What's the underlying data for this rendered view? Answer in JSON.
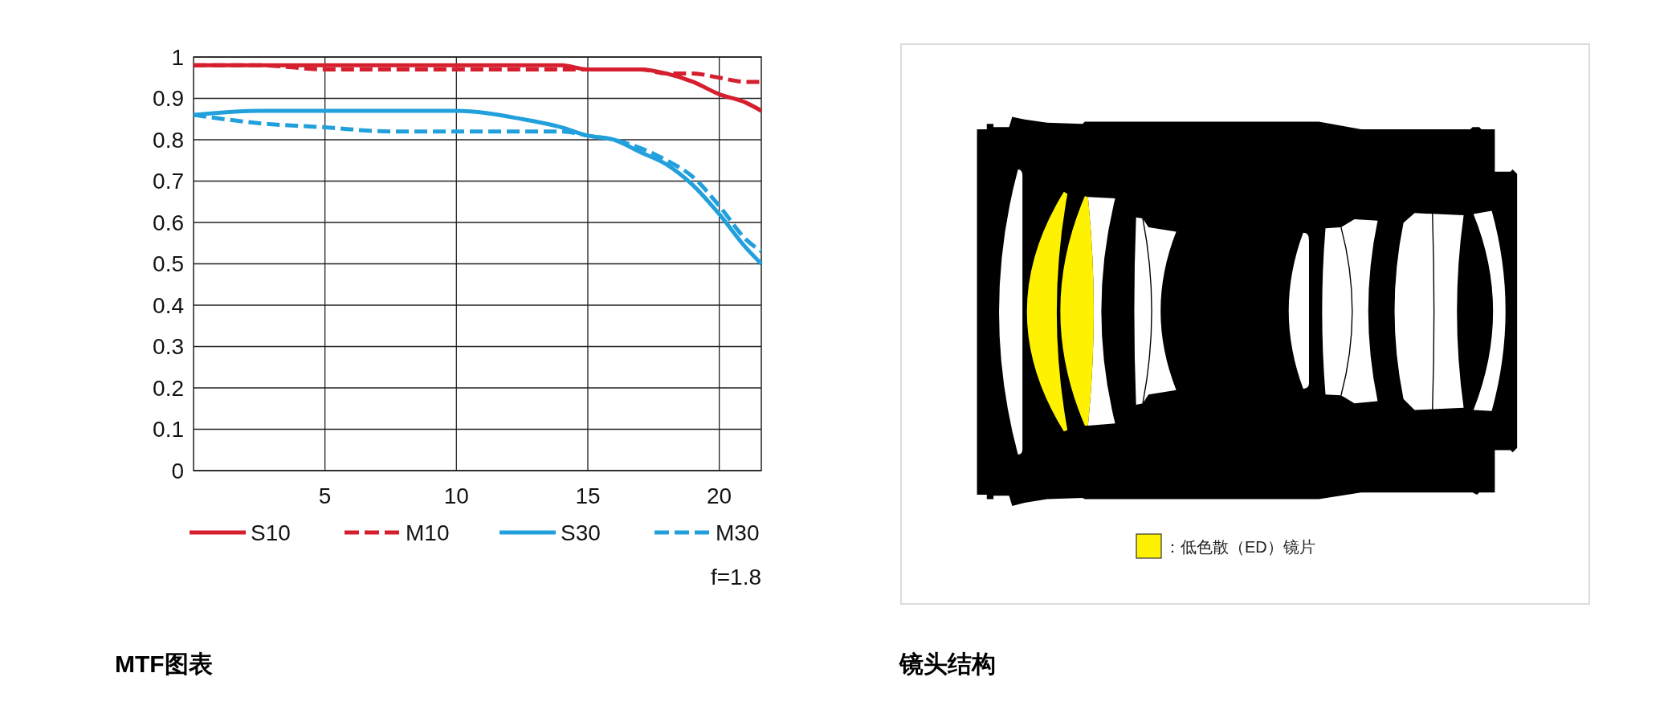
{
  "chart_data": [
    {
      "type": "line",
      "title": "MTF图表",
      "x": [
        0,
        2.5,
        5,
        7.5,
        10,
        12.5,
        14,
        15,
        16,
        17,
        18,
        19,
        20,
        21,
        21.6
      ],
      "series": [
        {
          "name": "S10",
          "color": "#d51f2e",
          "line_style": "solid",
          "values": [
            0.98,
            0.98,
            0.98,
            0.98,
            0.98,
            0.98,
            0.98,
            0.97,
            0.97,
            0.97,
            0.96,
            0.94,
            0.91,
            0.89,
            0.87
          ]
        },
        {
          "name": "M10",
          "color": "#d51f2e",
          "line_style": "dashed",
          "values": [
            0.98,
            0.98,
            0.97,
            0.97,
            0.97,
            0.97,
            0.97,
            0.97,
            0.97,
            0.97,
            0.96,
            0.96,
            0.95,
            0.94,
            0.94
          ]
        },
        {
          "name": "S30",
          "color": "#22a0dc",
          "line_style": "solid",
          "values": [
            0.86,
            0.87,
            0.87,
            0.87,
            0.87,
            0.85,
            0.83,
            0.81,
            0.8,
            0.77,
            0.74,
            0.69,
            0.62,
            0.54,
            0.5
          ]
        },
        {
          "name": "M30",
          "color": "#22a0dc",
          "line_style": "dashed",
          "values": [
            0.86,
            0.84,
            0.83,
            0.82,
            0.82,
            0.82,
            0.82,
            0.81,
            0.8,
            0.78,
            0.75,
            0.71,
            0.64,
            0.56,
            0.53
          ]
        }
      ],
      "xlim": [
        0,
        21.6
      ],
      "xticks": [
        5,
        10,
        15,
        20
      ],
      "ylim": [
        0,
        1
      ],
      "yticks": [
        0,
        0.1,
        0.2,
        0.3,
        0.4,
        0.5,
        0.6,
        0.7,
        0.8,
        0.9,
        1
      ],
      "grid": true,
      "legend": "bottom",
      "annotations": [
        "f=1.8"
      ]
    },
    {
      "type": "other",
      "title": "镜头结构",
      "annotations": [
        "：低色散（ED）镜片"
      ]
    }
  ]
}
